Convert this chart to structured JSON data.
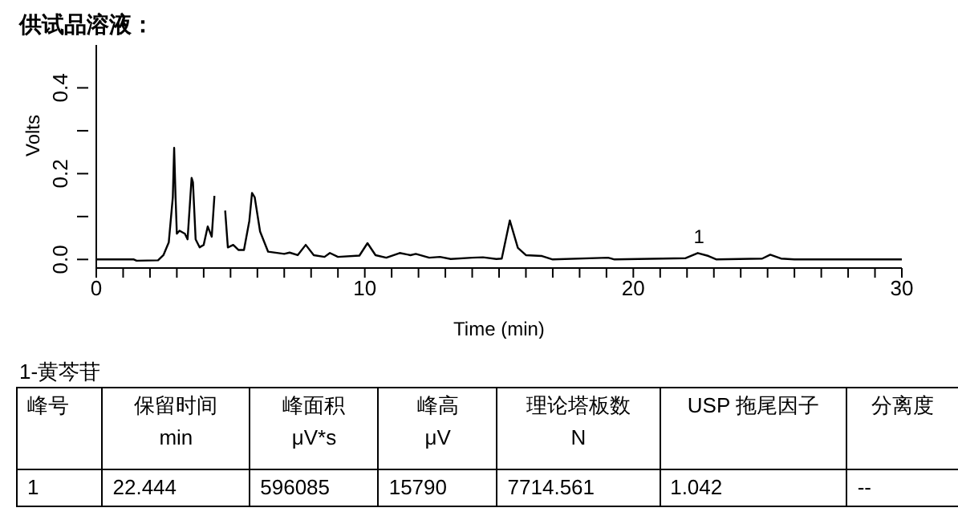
{
  "chart_data": {
    "type": "line",
    "title": "供试品溶液：",
    "xlabel": "Time (min)",
    "ylabel": "Volts",
    "xlim": [
      0,
      30
    ],
    "xticks": [
      0,
      {
        "value": 1,
        "label": null
      },
      {
        "value": 2,
        "label": null
      },
      {
        "value": 3,
        "label": null
      },
      {
        "value": 4,
        "label": null
      },
      {
        "value": 5,
        "label": null
      },
      {
        "value": 6,
        "label": null
      },
      {
        "value": 7,
        "label": null
      },
      {
        "value": 8,
        "label": null
      },
      {
        "value": 9,
        "label": null
      },
      10,
      {
        "value": 11,
        "label": null
      },
      {
        "value": 12,
        "label": null
      },
      {
        "value": 13,
        "label": null
      },
      {
        "value": 14,
        "label": null
      },
      {
        "value": 15,
        "label": null
      },
      {
        "value": 16,
        "label": null
      },
      {
        "value": 17,
        "label": null
      },
      {
        "value": 18,
        "label": null
      },
      {
        "value": 19,
        "label": null
      },
      20,
      {
        "value": 21,
        "label": null
      },
      {
        "value": 22,
        "label": null
      },
      {
        "value": 23,
        "label": null
      },
      {
        "value": 24,
        "label": null
      },
      {
        "value": 25,
        "label": null
      },
      {
        "value": 26,
        "label": null
      },
      {
        "value": 27,
        "label": null
      },
      {
        "value": 28,
        "label": null
      },
      {
        "value": 29,
        "label": null
      },
      30
    ],
    "ylim": [
      -0.02,
      0.5
    ],
    "yticks": [
      {
        "value": 0,
        "label": "0.0"
      },
      {
        "value": 0.1,
        "label": null
      },
      {
        "value": 0.2,
        "label": "0.2"
      },
      {
        "value": 0.3,
        "label": null
      },
      {
        "value": 0.4,
        "label": "0.4"
      }
    ],
    "series": [
      {
        "color": "#000000",
        "x": [
          0,
          1.4,
          1.5,
          2.3,
          2.5,
          2.7,
          2.85,
          2.9,
          2.95,
          3.0,
          3.1,
          3.3,
          3.4,
          3.55,
          3.6,
          3.7,
          3.85,
          4.0,
          4.15,
          4.3,
          4.4,
          4.45,
          4.7,
          4.8,
          4.9,
          5.1,
          5.3,
          5.5,
          5.7,
          5.8,
          5.9,
          6.1,
          6.4,
          7.0,
          7.2,
          7.5,
          7.8,
          8.1,
          8.5,
          8.7,
          9.0,
          9.8,
          10.1,
          10.4,
          10.8,
          11.3,
          11.7,
          11.9,
          12.4,
          12.8,
          13.2,
          14.0,
          14.4,
          14.9,
          15.1,
          15.4,
          15.7,
          16.0,
          16.6,
          17.0,
          19.06,
          19.3,
          21.95,
          22.4,
          22.8,
          23.1,
          24.8,
          25.1,
          25.5,
          26.0,
          30
        ],
        "values": [
          0,
          0,
          -0.003,
          -0.002,
          0.01,
          0.04,
          0.145,
          0.26,
          0.15,
          0.06,
          0.067,
          0.06,
          0.047,
          0.19,
          0.18,
          0.047,
          0.028,
          0.034,
          0.077,
          0.053,
          0.148,
          null,
          null,
          0.114,
          0.028,
          0.034,
          0.022,
          0.022,
          0.09,
          0.155,
          0.145,
          0.065,
          0.018,
          0.013,
          0.016,
          0.01,
          0.034,
          0.01,
          0.006,
          0.015,
          0.006,
          0.009,
          0.038,
          0.01,
          0.004,
          0.015,
          0.01,
          0.013,
          0.004,
          0.006,
          0.001,
          0.004,
          0.005,
          0.001,
          0.002,
          0.091,
          0.027,
          0.01,
          0.008,
          0,
          0.004,
          0,
          0.003,
          0.015,
          0.008,
          0,
          0.002,
          0.011,
          0.002,
          0,
          0
        ]
      }
    ],
    "annotations": [
      {
        "text": "1",
        "x": 22.444,
        "y": 0.015
      },
      "1-黄芩苷",
      "峰号",
      "保留时间\nmin",
      "峰面积\nμV*s",
      "峰高\nμV",
      "理论塔板数\nN",
      "USP 拖尾因子",
      "分离度",
      "1",
      "22.444",
      "596085",
      "15790",
      "7714.561",
      "1.042",
      "--"
    ]
  }
}
